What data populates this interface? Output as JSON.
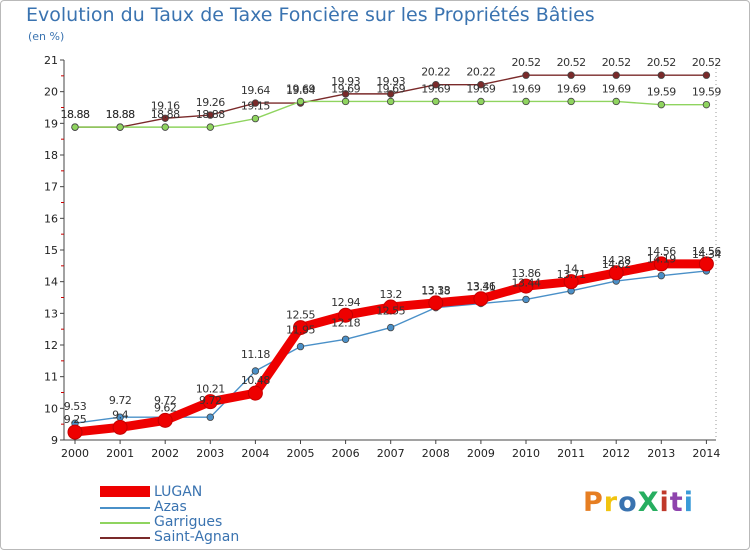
{
  "title": "Evolution du Taux de Taxe Foncière sur les Propriétés Bâties",
  "unit_label": "(en %)",
  "logo": {
    "text": "ProXiti",
    "colors": [
      "#e67e22",
      "#f1c40f",
      "#3a73b0",
      "#27ae60",
      "#c0392b",
      "#8e44ad",
      "#3a9bd8"
    ]
  },
  "chart_data": {
    "type": "line",
    "categories": [
      "2000",
      "2001",
      "2002",
      "2003",
      "2004",
      "2005",
      "2006",
      "2007",
      "2008",
      "2009",
      "2010",
      "2011",
      "2012",
      "2013",
      "2014"
    ],
    "ylim": [
      9,
      21
    ],
    "yticks": [
      9,
      10,
      11,
      12,
      13,
      14,
      15,
      16,
      17,
      18,
      19,
      20,
      21
    ],
    "grid": false,
    "legend": "bottom-left",
    "series": [
      {
        "name": "LUGAN",
        "color": "#ee0000",
        "values": [
          9.25,
          9.4,
          9.62,
          10.21,
          10.48,
          12.55,
          12.94,
          13.2,
          13.33,
          13.46,
          13.86,
          14,
          14.28,
          14.56,
          14.56
        ],
        "labels": [
          "9.25",
          "9.4",
          "9.62",
          "10.21",
          "10.48",
          "12.55",
          "12.94",
          "13.2",
          "13.33",
          "13.46",
          "13.86",
          "14",
          "14.28",
          "14.56",
          "14.56"
        ]
      },
      {
        "name": "Azas",
        "color": "#4a90c8",
        "values": [
          9.53,
          9.72,
          9.72,
          9.72,
          11.18,
          11.95,
          12.18,
          12.55,
          13.18,
          13.31,
          13.44,
          13.71,
          14.02,
          14.19,
          14.34
        ],
        "labels": [
          "9.53",
          "9.72",
          "9.72",
          "9.72",
          "11.18",
          "11.95",
          "12.18",
          "12.55",
          "13.18",
          "13.31",
          "13.44",
          "13.71",
          "14.02",
          "14.19",
          "14.34"
        ]
      },
      {
        "name": "Garrigues",
        "color": "#8fd45f",
        "values": [
          18.88,
          18.88,
          18.88,
          18.88,
          19.15,
          19.69,
          19.69,
          19.69,
          19.69,
          19.69,
          19.69,
          19.69,
          19.69,
          19.59,
          19.59
        ],
        "labels": [
          "18.88",
          "18.88",
          "18.88",
          "18.88",
          "19.15",
          "19.69",
          "19.69",
          "19.69",
          "19.69",
          "19.69",
          "19.69",
          "19.69",
          "19.69",
          "19.59",
          "19.59"
        ]
      },
      {
        "name": "Saint-Agnan",
        "color": "#7a2a2a",
        "values": [
          18.88,
          18.88,
          19.16,
          19.26,
          19.64,
          19.64,
          19.93,
          19.93,
          20.22,
          20.22,
          20.52,
          20.52,
          20.52,
          20.52,
          20.52
        ],
        "labels": [
          "18.88",
          "18.88",
          "19.16",
          "19.26",
          "19.64",
          "19.64",
          "19.93",
          "19.93",
          "20.22",
          "20.22",
          "20.52",
          "20.52",
          "20.52",
          "20.52",
          "20.52"
        ]
      }
    ]
  }
}
